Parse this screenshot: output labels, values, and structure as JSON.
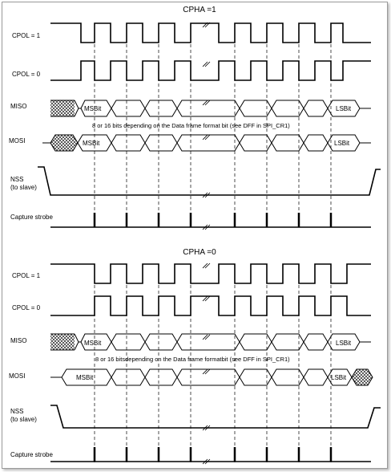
{
  "diagrams": [
    {
      "title": "CPHA =1",
      "signals": {
        "cpol1": "CPOL = 1",
        "cpol0": "CPOL = 0",
        "miso": "MISO",
        "mosi": "MOSI",
        "nss": "NSS",
        "nss_sub": "(to slave)",
        "capture": "Capture strobe"
      },
      "miso_cells": {
        "first": "MSBit",
        "last": "LSBit"
      },
      "mosi_cells": {
        "first": "MSBit",
        "last": "LSBit"
      },
      "note": "8 or 16 bits depending on the Data frame format bit (see DFF in SPI_CR1)"
    },
    {
      "title": "CPHA =0",
      "signals": {
        "cpol1": "CPOL = 1",
        "cpol0": "CPOL = 0",
        "miso": "MISO",
        "mosi": "MOSI",
        "nss": "NSS",
        "nss_sub": "(to slave)",
        "capture": "Capture strobe"
      },
      "miso_cells": {
        "first": "MSBit",
        "last": "LSBit"
      },
      "mosi_cells": {
        "first": "MSBit",
        "last": "LSBit"
      },
      "note": "8 or 16 bitsdepending on the Data frame formatbit (see DFF in SPI_CR1)"
    }
  ],
  "colors": {
    "line": "#000000",
    "frame": "#9a9a9a"
  }
}
